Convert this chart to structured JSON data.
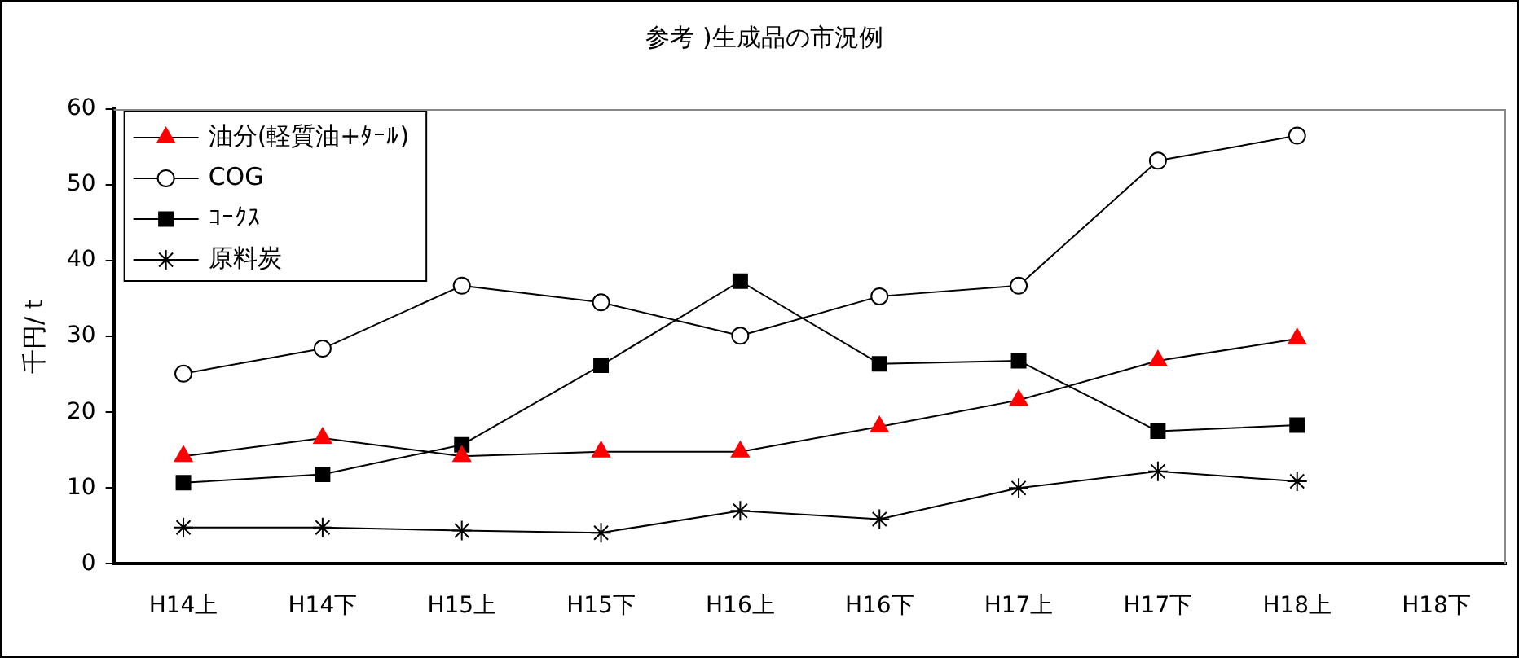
{
  "chart_data": {
    "type": "line",
    "title": "参考 )生成品の市況例",
    "ylabel": "千円/ t",
    "categories": [
      "H14上",
      "H14下",
      "H15上",
      "H15下",
      "H16上",
      "H16下",
      "H17上",
      "H17下",
      "H18上",
      "H18下"
    ],
    "series": [
      {
        "name": "油分(軽質油+ﾀｰﾙ)",
        "color": "#ff0000",
        "marker": "triangle",
        "values": [
          14.2,
          16.6,
          14.2,
          14.8,
          14.8,
          18.1,
          21.6,
          26.8,
          29.7,
          null
        ]
      },
      {
        "name": "COG",
        "color": "#000000",
        "marker": "circle",
        "values": [
          25.1,
          28.4,
          36.7,
          34.5,
          30.1,
          35.3,
          36.7,
          53.2,
          56.5,
          null
        ]
      },
      {
        "name": "ｺｰｸｽ",
        "color": "#000000",
        "marker": "square",
        "values": [
          10.7,
          11.8,
          15.7,
          26.2,
          37.3,
          26.4,
          26.8,
          17.5,
          18.3,
          null
        ]
      },
      {
        "name": "原料炭",
        "color": "#000000",
        "marker": "cross",
        "values": [
          4.8,
          4.8,
          4.4,
          4.1,
          7.0,
          5.9,
          10.0,
          12.2,
          10.9,
          null
        ]
      }
    ],
    "ylim": [
      0,
      60
    ],
    "yticks": [
      0,
      10,
      20,
      30,
      40,
      50,
      60
    ],
    "grid": false,
    "legend": "top left"
  }
}
